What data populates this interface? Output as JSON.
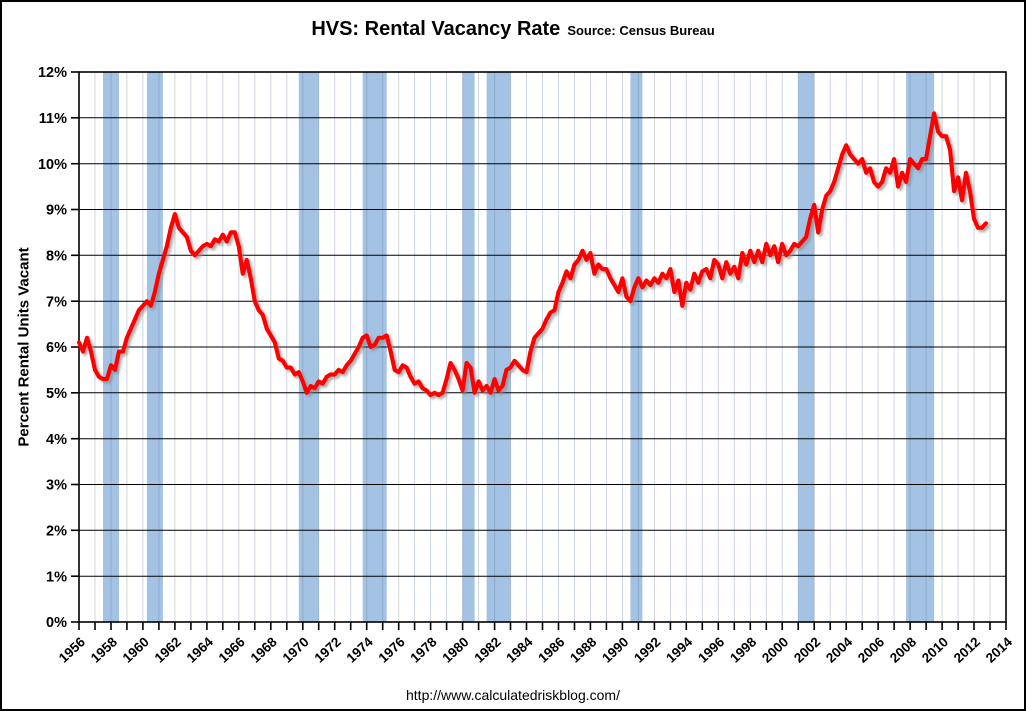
{
  "header": {
    "title": "HVS: Rental Vacancy Rate",
    "source_label": "Source: Census Bureau"
  },
  "footer": {
    "url": "http://www.calculatedriskblog.com/"
  },
  "colors": {
    "line": "#ff0000",
    "recession_band": "#a3c2e4",
    "grid_horizontal": "#000000",
    "grid_vertical": "rgba(90,115,150,0.30)",
    "axis": "#000000",
    "background": "#ffffff"
  },
  "chart_data": {
    "type": "line",
    "title": "HVS: Rental Vacancy Rate",
    "subtitle": "Source: Census Bureau",
    "xlabel": "",
    "ylabel": "Percent Rental Units Vacant",
    "legend": "none",
    "grid": {
      "horizontal": true,
      "vertical": true
    },
    "x_axis": {
      "start_year": 1956,
      "end_year": 2014,
      "tick_every_years": 1,
      "label_every_years": 2,
      "tick_labels": [
        "1956",
        "1958",
        "1960",
        "1962",
        "1964",
        "1966",
        "1968",
        "1970",
        "1972",
        "1974",
        "1976",
        "1978",
        "1980",
        "1982",
        "1984",
        "1986",
        "1988",
        "1990",
        "1992",
        "1994",
        "1996",
        "1998",
        "2000",
        "2002",
        "2004",
        "2006",
        "2008",
        "2010",
        "2012",
        "2014"
      ]
    },
    "y_axis": {
      "min": 0,
      "max": 12,
      "tick_step": 1,
      "tick_labels": [
        "0%",
        "1%",
        "2%",
        "3%",
        "4%",
        "5%",
        "6%",
        "7%",
        "8%",
        "9%",
        "10%",
        "11%",
        "12%"
      ]
    },
    "series": [
      {
        "name": "Rental Vacancy Rate",
        "color": "#ff0000",
        "frequency": "quarterly",
        "start": "1956Q1",
        "end": "2012Q4",
        "values": [
          6.1,
          5.9,
          6.2,
          5.9,
          5.5,
          5.35,
          5.3,
          5.3,
          5.6,
          5.5,
          5.9,
          5.9,
          6.2,
          6.4,
          6.6,
          6.8,
          6.9,
          7.0,
          6.9,
          7.2,
          7.6,
          7.9,
          8.2,
          8.6,
          8.9,
          8.6,
          8.5,
          8.4,
          8.1,
          8.0,
          8.1,
          8.2,
          8.25,
          8.2,
          8.35,
          8.3,
          8.45,
          8.3,
          8.5,
          8.5,
          8.2,
          7.6,
          7.9,
          7.5,
          7.0,
          6.8,
          6.7,
          6.4,
          6.25,
          6.1,
          5.75,
          5.7,
          5.55,
          5.55,
          5.4,
          5.45,
          5.25,
          5.0,
          5.15,
          5.1,
          5.25,
          5.2,
          5.35,
          5.4,
          5.4,
          5.5,
          5.45,
          5.6,
          5.7,
          5.85,
          6.0,
          6.2,
          6.25,
          6.0,
          6.05,
          6.2,
          6.2,
          6.25,
          5.9,
          5.5,
          5.45,
          5.6,
          5.55,
          5.35,
          5.2,
          5.25,
          5.1,
          5.05,
          4.95,
          5.0,
          4.95,
          5.0,
          5.3,
          5.65,
          5.5,
          5.3,
          5.05,
          5.65,
          5.55,
          5.0,
          5.25,
          5.05,
          5.15,
          5.0,
          5.3,
          5.05,
          5.15,
          5.5,
          5.55,
          5.7,
          5.6,
          5.5,
          5.45,
          5.9,
          6.2,
          6.3,
          6.4,
          6.6,
          6.75,
          6.8,
          7.2,
          7.4,
          7.65,
          7.5,
          7.8,
          7.9,
          8.1,
          7.9,
          8.05,
          7.6,
          7.8,
          7.7,
          7.7,
          7.5,
          7.35,
          7.2,
          7.5,
          7.1,
          7.0,
          7.3,
          7.5,
          7.3,
          7.45,
          7.35,
          7.5,
          7.4,
          7.6,
          7.5,
          7.7,
          7.2,
          7.45,
          6.9,
          7.4,
          7.25,
          7.6,
          7.4,
          7.65,
          7.7,
          7.5,
          7.9,
          7.8,
          7.5,
          7.85,
          7.6,
          7.75,
          7.5,
          8.05,
          7.8,
          8.1,
          7.85,
          8.1,
          7.85,
          8.25,
          8.0,
          8.2,
          7.85,
          8.25,
          8.0,
          8.1,
          8.25,
          8.2,
          8.3,
          8.4,
          8.8,
          9.1,
          8.5,
          9.0,
          9.3,
          9.4,
          9.6,
          9.9,
          10.2,
          10.4,
          10.2,
          10.1,
          10.0,
          10.1,
          9.8,
          9.9,
          9.6,
          9.5,
          9.6,
          9.9,
          9.8,
          10.1,
          9.5,
          9.8,
          9.6,
          10.1,
          10.0,
          9.9,
          10.1,
          10.1,
          10.6,
          11.1,
          10.7,
          10.6,
          10.6,
          10.3,
          9.4,
          9.7,
          9.2,
          9.8,
          9.4,
          8.8,
          8.6,
          8.6,
          8.7
        ]
      }
    ],
    "recession_bands": {
      "description": "NBER recessions (shaded)",
      "color": "#a3c2e4",
      "ranges_years": [
        [
          1957.5,
          1958.5
        ],
        [
          1960.25,
          1961.25
        ],
        [
          1969.75,
          1971.0
        ],
        [
          1973.75,
          1975.25
        ],
        [
          1980.0,
          1980.75
        ],
        [
          1981.5,
          1983.0
        ],
        [
          1990.5,
          1991.25
        ],
        [
          2001.0,
          2002.0
        ],
        [
          2007.75,
          2009.5
        ]
      ]
    }
  }
}
